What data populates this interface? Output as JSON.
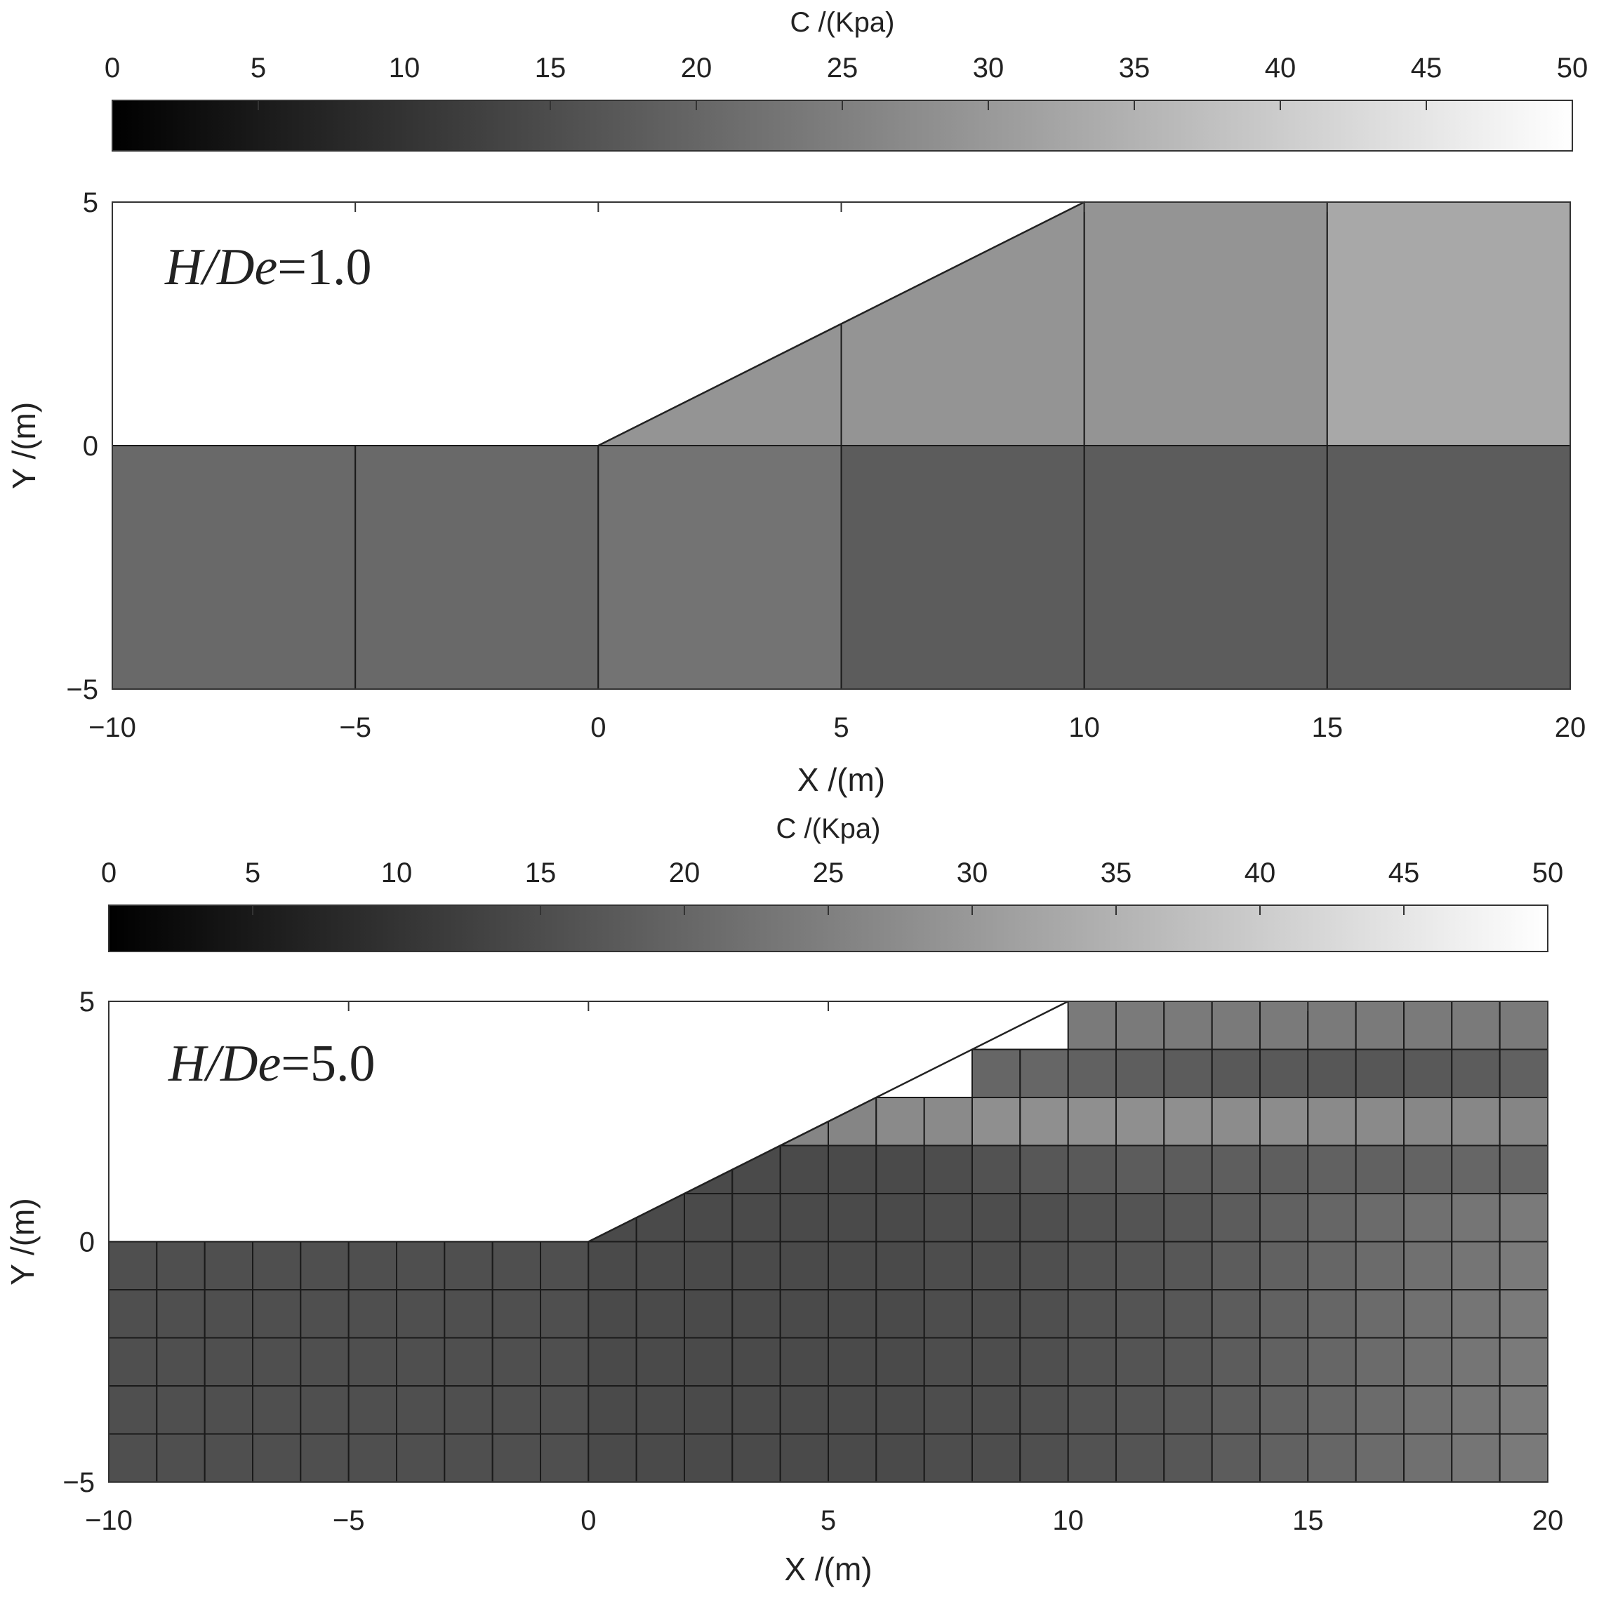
{
  "chart_data": [
    {
      "type": "heatmap",
      "annotation": {
        "italic": "H/De",
        "rest": "=1.0"
      },
      "xlabel": "X /(m)",
      "ylabel": "Y /(m)",
      "xlim": [
        -10,
        20
      ],
      "ylim": [
        -5,
        5
      ],
      "xticks": [
        "−10",
        "−5",
        "0",
        "5",
        "10",
        "15",
        "20"
      ],
      "yticks": [
        "−5",
        "0",
        "5"
      ],
      "colorbar": {
        "label": "C /(Kpa)",
        "range": [
          0,
          50
        ],
        "ticks": [
          "0",
          "5",
          "10",
          "15",
          "20",
          "25",
          "30",
          "35",
          "40",
          "45",
          "50"
        ],
        "colormap": "gray"
      },
      "slope": {
        "toe": [
          0,
          0
        ],
        "crest": [
          10,
          5
        ]
      },
      "cell_size": [
        5,
        5
      ],
      "x_edges": [
        -10,
        -5,
        0,
        5,
        10,
        15,
        20
      ],
      "y_edges": [
        -5,
        0,
        5
      ],
      "values": [
        [
          20.5,
          20.5,
          22.5,
          18,
          18,
          18
        ],
        [
          null,
          null,
          29,
          29,
          29,
          33
        ]
      ]
    },
    {
      "type": "heatmap",
      "annotation": {
        "italic": "H/De",
        "rest": "=5.0"
      },
      "xlabel": "X /(m)",
      "ylabel": "Y /(m)",
      "xlim": [
        -10,
        20
      ],
      "ylim": [
        -5,
        5
      ],
      "xticks": [
        "−10",
        "−5",
        "0",
        "5",
        "10",
        "15",
        "20"
      ],
      "yticks": [
        "−5",
        "0",
        "5"
      ],
      "colorbar": {
        "label": "C /(Kpa)",
        "range": [
          0,
          50
        ],
        "ticks": [
          "0",
          "5",
          "10",
          "15",
          "20",
          "25",
          "30",
          "35",
          "40",
          "45",
          "50"
        ],
        "colormap": "gray"
      },
      "slope": {
        "toe": [
          0,
          0
        ],
        "crest": [
          10,
          5
        ]
      },
      "cell_size": [
        1,
        1
      ],
      "x_edges": [
        -10,
        -9,
        -8,
        -7,
        -6,
        -5,
        -4,
        -3,
        -2,
        -1,
        0,
        1,
        2,
        3,
        4,
        5,
        6,
        7,
        8,
        9,
        10,
        11,
        12,
        13,
        14,
        15,
        16,
        17,
        18,
        19,
        20
      ],
      "y_edges": [
        -5,
        -4,
        -3,
        -2,
        -1,
        0,
        1,
        2,
        3,
        4,
        5
      ],
      "values": [
        [
          15.5,
          15.5,
          15.5,
          15.5,
          15.5,
          15.5,
          15.5,
          15.5,
          15.5,
          15.5,
          14.5,
          14.5,
          14.5,
          14.5,
          14.5,
          14.5,
          14.5,
          15,
          15,
          15.5,
          16,
          16.5,
          17,
          18,
          19,
          20,
          21,
          22,
          23,
          24
        ],
        [
          15.5,
          15.5,
          15.5,
          15.5,
          15.5,
          15.5,
          15.5,
          15.5,
          15.5,
          15.5,
          14.5,
          14.5,
          14.5,
          14.5,
          14.5,
          14.5,
          14.5,
          15,
          15,
          15.5,
          16,
          16.5,
          17,
          18,
          19,
          20,
          21,
          22,
          23,
          24
        ],
        [
          15.5,
          15.5,
          15.5,
          15.5,
          15.5,
          15.5,
          15.5,
          15.5,
          15.5,
          15.5,
          14.5,
          14.5,
          14.5,
          14.5,
          14.5,
          14.5,
          14.5,
          15,
          15,
          15.5,
          16,
          16.5,
          17,
          18,
          19,
          20,
          21,
          22,
          23,
          24
        ],
        [
          15.5,
          15.5,
          15.5,
          15.5,
          15.5,
          15.5,
          15.5,
          15.5,
          15.5,
          15.5,
          14.5,
          14.5,
          14.5,
          14.5,
          14.5,
          14.5,
          14.5,
          15,
          15,
          15.5,
          16,
          16.5,
          17,
          18,
          19,
          20,
          21,
          22,
          23,
          24
        ],
        [
          15.5,
          15.5,
          15.5,
          15.5,
          15.5,
          15.5,
          15.5,
          15.5,
          15.5,
          15.5,
          14.5,
          14.5,
          14.5,
          14.5,
          14.5,
          14.5,
          14.5,
          15,
          15,
          15.5,
          16,
          16.5,
          17,
          18,
          19,
          20,
          21,
          22,
          23,
          24
        ],
        [
          null,
          null,
          null,
          null,
          null,
          null,
          null,
          null,
          null,
          null,
          14.5,
          14.5,
          14.5,
          14.5,
          14.5,
          14.5,
          14.5,
          15,
          15,
          15.5,
          16,
          16.5,
          17,
          18,
          19,
          20,
          21,
          22,
          23,
          24
        ],
        [
          null,
          null,
          null,
          null,
          null,
          null,
          null,
          null,
          null,
          null,
          null,
          null,
          14.5,
          14.5,
          14.5,
          14.5,
          14.5,
          15,
          16,
          17,
          17.5,
          18,
          18,
          18.5,
          18.5,
          19,
          19,
          19.5,
          20,
          20
        ],
        [
          null,
          null,
          null,
          null,
          null,
          null,
          null,
          null,
          null,
          null,
          null,
          null,
          null,
          null,
          26,
          26,
          27,
          27,
          28,
          28,
          28,
          28,
          28,
          27.5,
          27.5,
          27,
          27,
          26.5,
          26.5,
          26
        ],
        [
          null,
          null,
          null,
          null,
          null,
          null,
          null,
          null,
          null,
          null,
          null,
          null,
          null,
          null,
          null,
          null,
          null,
          null,
          20,
          20,
          19,
          18.5,
          18,
          17.5,
          17.5,
          17,
          17,
          17.5,
          18,
          19
        ],
        [
          null,
          null,
          null,
          null,
          null,
          null,
          null,
          null,
          null,
          null,
          null,
          null,
          null,
          null,
          null,
          null,
          null,
          null,
          null,
          null,
          24,
          24,
          24,
          24,
          24,
          24,
          24,
          24,
          24,
          24
        ]
      ]
    }
  ]
}
